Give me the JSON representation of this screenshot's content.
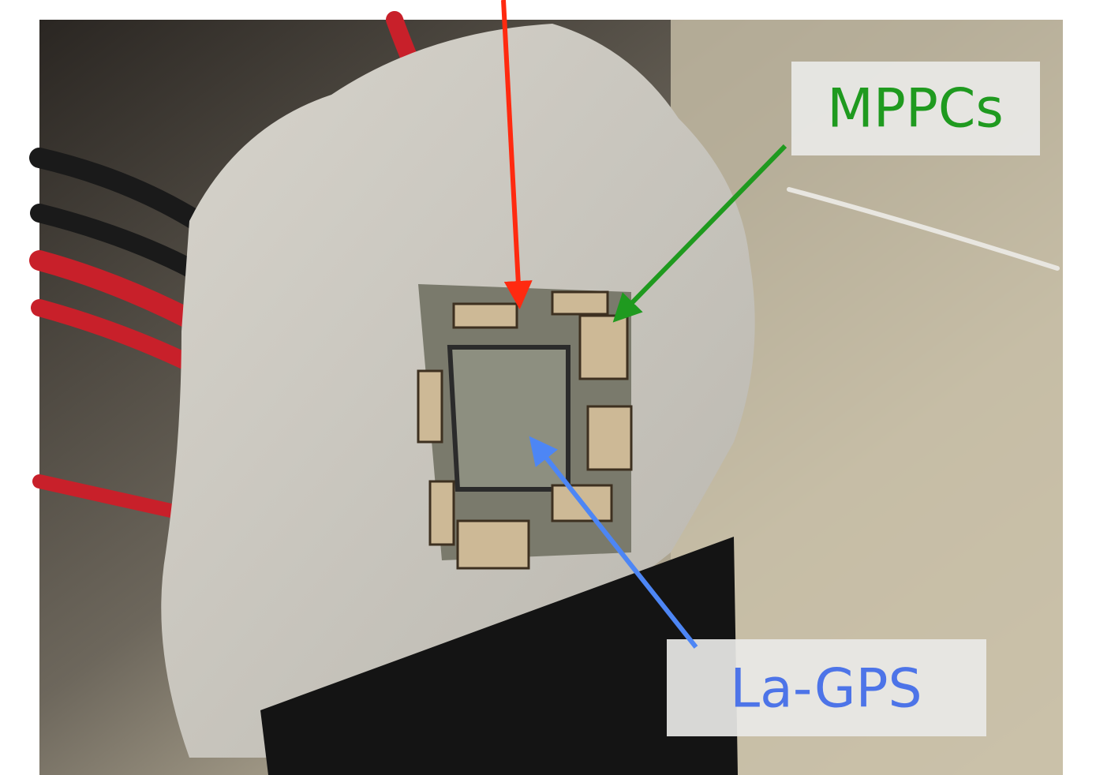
{
  "annotations": [
    {
      "text": "MPPCs"
    },
    {
      "text": "La-GPS"
    }
  ]
}
